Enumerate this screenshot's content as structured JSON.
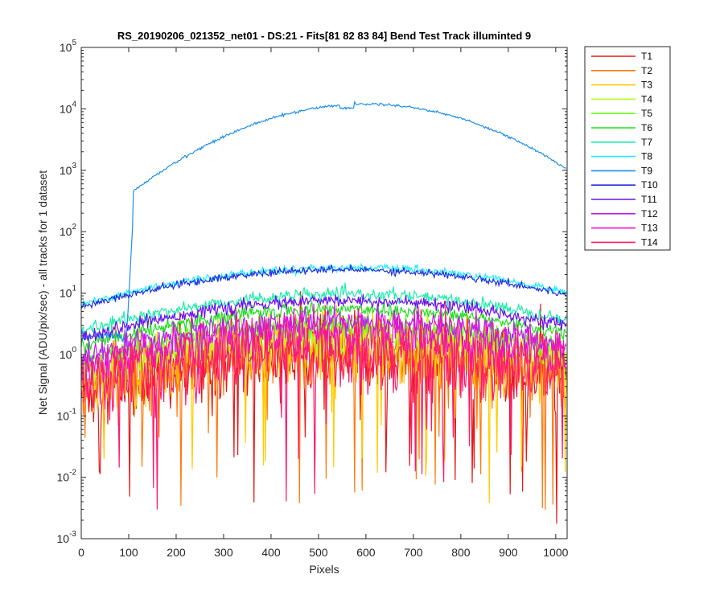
{
  "chart_data": {
    "type": "line",
    "title": "RS_20190206_021352_net01 - DS:21 - Fits[81  82  83  84]   Bend Test       Track illuminted 9",
    "xlabel": "Pixels",
    "ylabel": "Net Signal (ADU/pix/sec) - all tracks for 1 dataset",
    "xlim": [
      0,
      1024
    ],
    "ylim": [
      0.001,
      100000
    ],
    "yscale": "log",
    "grid": false,
    "legend_position": "outside-top-right",
    "x_ticks": [
      0,
      100,
      200,
      300,
      400,
      500,
      600,
      700,
      800,
      900,
      1000
    ],
    "x_tick_labels": [
      "0",
      "100",
      "200",
      "300",
      "400",
      "500",
      "600",
      "700",
      "800",
      "900",
      "1000"
    ],
    "y_ticks": [
      0.001,
      0.01,
      0.1,
      1,
      10,
      100,
      1000,
      10000,
      100000
    ],
    "y_tick_labels": [
      {
        "base": "10",
        "exp": "-3"
      },
      {
        "base": "10",
        "exp": "-2"
      },
      {
        "base": "10",
        "exp": "-1"
      },
      {
        "base": "10",
        "exp": "0"
      },
      {
        "base": "10",
        "exp": "1"
      },
      {
        "base": "10",
        "exp": "2"
      },
      {
        "base": "10",
        "exp": "3"
      },
      {
        "base": "10",
        "exp": "4"
      },
      {
        "base": "10",
        "exp": "5"
      }
    ],
    "series": [
      {
        "name": "T1",
        "color": "#e61919",
        "peak": 1.0,
        "start_level": 0.6,
        "noise_dex": 0.35
      },
      {
        "name": "T2",
        "color": "#ff7a10",
        "peak": 1.2,
        "start_level": 0.7,
        "noise_dex": 0.3
      },
      {
        "name": "T3",
        "color": "#ffcc00",
        "peak": 1.3,
        "start_level": 0.8,
        "noise_dex": 0.28
      },
      {
        "name": "T4",
        "color": "#b0ff1a",
        "peak": 2.0,
        "start_level": 1.0,
        "noise_dex": 0.15
      },
      {
        "name": "T5",
        "color": "#66ff1a",
        "peak": 3.0,
        "start_level": 1.2,
        "noise_dex": 0.1
      },
      {
        "name": "T6",
        "color": "#22dd22",
        "peak": 5.5,
        "start_level": 1.5,
        "noise_dex": 0.06
      },
      {
        "name": "T7",
        "color": "#1aeeaa",
        "peak": 9.5,
        "start_level": 2.0,
        "noise_dex": 0.05
      },
      {
        "name": "T8",
        "color": "#22eeff",
        "peak": 26,
        "start_level": 2.2,
        "noise_dex": 0.03
      },
      {
        "name": "T9",
        "color": "#1f8fea",
        "peak": 12000,
        "start_level": 2.0,
        "noise_dex": 0.01
      },
      {
        "name": "T10",
        "color": "#1f2fdd",
        "peak": 24,
        "start_level": 1.8,
        "noise_dex": 0.03
      },
      {
        "name": "T11",
        "color": "#6a10ee",
        "peak": 7.5,
        "start_level": 1.4,
        "noise_dex": 0.05
      },
      {
        "name": "T12",
        "color": "#bb20ee",
        "peak": 3.5,
        "start_level": 1.1,
        "noise_dex": 0.1
      },
      {
        "name": "T13",
        "color": "#ee10cc",
        "peak": 2.2,
        "start_level": 0.9,
        "noise_dex": 0.2
      },
      {
        "name": "T14",
        "color": "#ff1a6e",
        "peak": 1.1,
        "start_level": 0.7,
        "noise_dex": 0.3
      }
    ]
  }
}
